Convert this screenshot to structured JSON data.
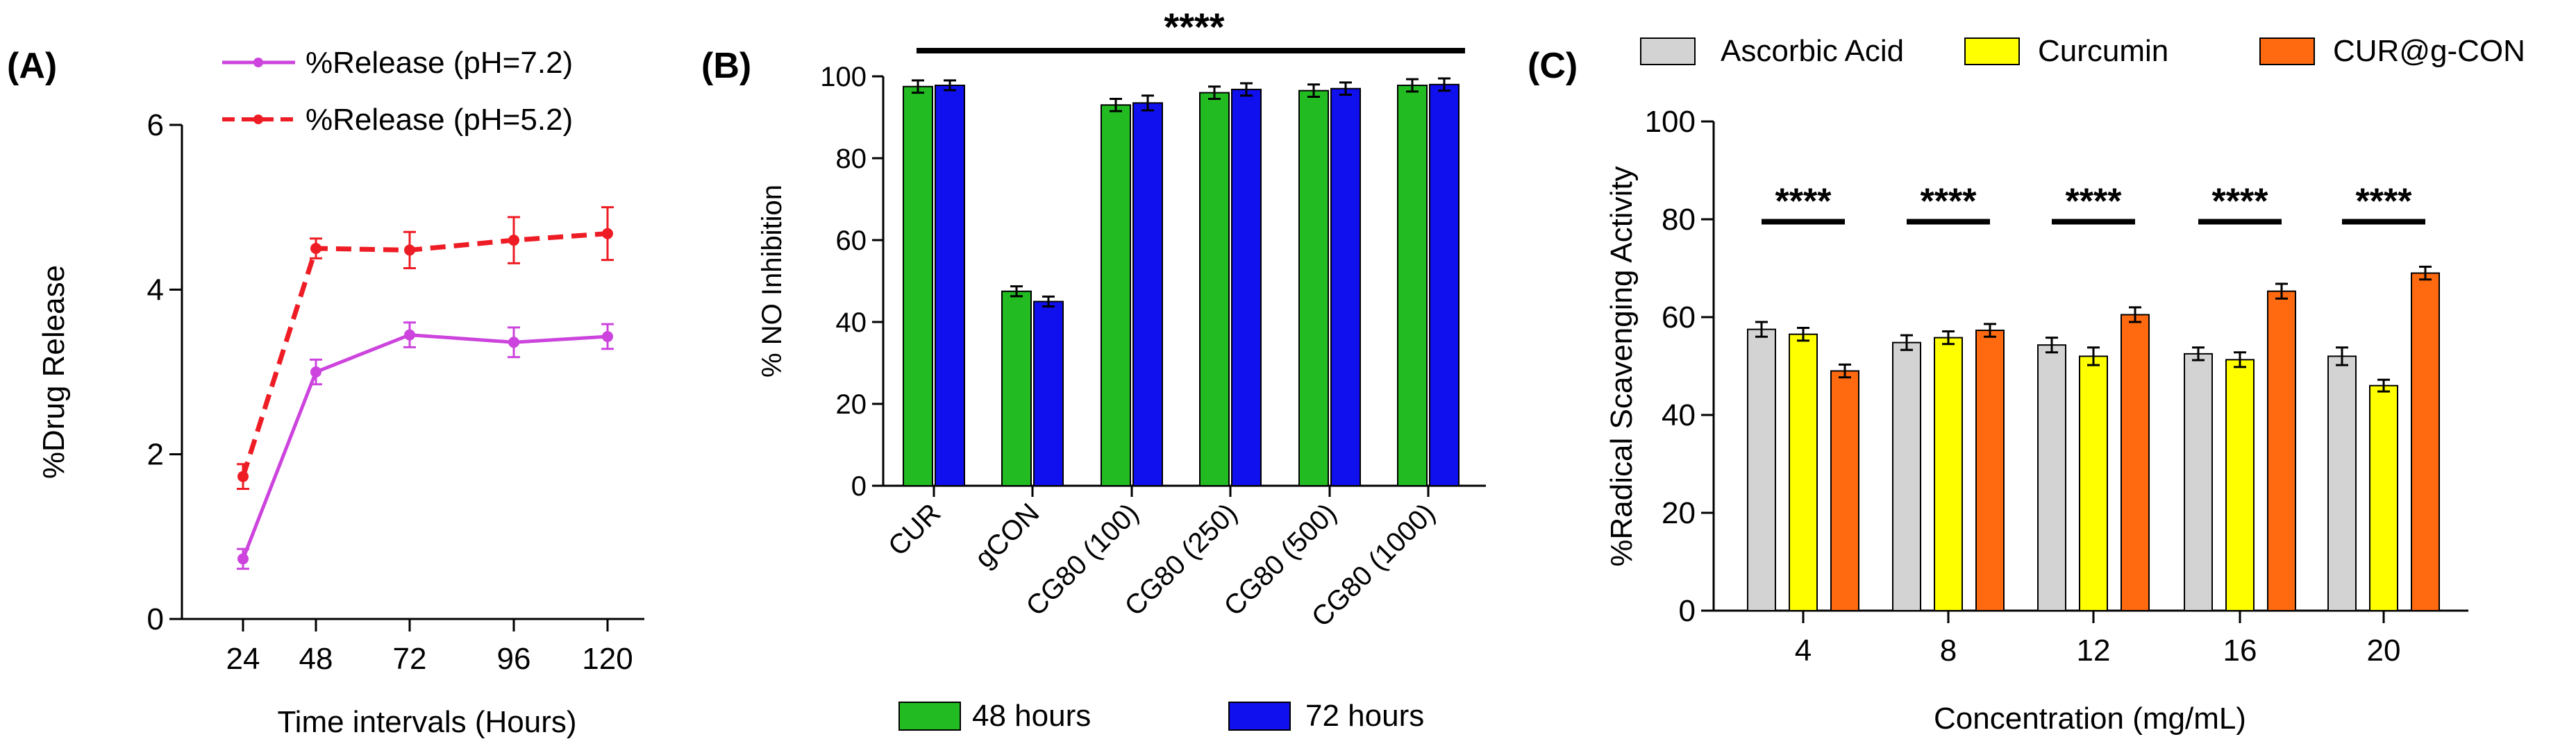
{
  "panels": {
    "a": {
      "label": "(A)"
    },
    "b": {
      "label": "(B)"
    },
    "c": {
      "label": "(C)"
    }
  },
  "colors": {
    "ph72": "#cc44dd",
    "ph52": "#ee1c24",
    "h48": "#22bb22",
    "h72": "#1010ee",
    "ascorbic": "#d3d3d3",
    "curcumin": "#ffff00",
    "curg": "#ff6a10"
  },
  "chart_data": [
    {
      "type": "line",
      "title": "",
      "xlabel": "Time intervals (Hours)",
      "ylabel": "%Drug Release",
      "x": [
        24,
        48,
        72,
        96,
        120
      ],
      "xticks": [
        "24",
        "48",
        "72",
        "96",
        "120"
      ],
      "ylim": [
        0,
        6
      ],
      "yticks": [
        "0",
        "2",
        "4",
        "6"
      ],
      "legend": "top-left",
      "series": [
        {
          "name": "%Release (pH=7.2)",
          "values": [
            0.73,
            3.0,
            3.45,
            3.36,
            3.43
          ],
          "errors": [
            0.12,
            0.15,
            0.15,
            0.18,
            0.15
          ]
        },
        {
          "name": "%Release (pH=5.2)",
          "values": [
            1.73,
            4.5,
            4.48,
            4.6,
            4.68
          ],
          "errors": [
            0.15,
            0.12,
            0.22,
            0.28,
            0.32
          ]
        }
      ]
    },
    {
      "type": "bar",
      "title": "",
      "xlabel": "",
      "ylabel": "% NO Inhibition",
      "categories": [
        "CUR",
        "gCON",
        "CG80 (100)",
        "CG80 (250)",
        "CG80 (500)",
        "CG80 (1000)"
      ],
      "ylim": [
        0,
        100
      ],
      "yticks": [
        "0",
        "20",
        "40",
        "60",
        "80",
        "100"
      ],
      "significance": "****",
      "legend": "bottom",
      "series": [
        {
          "name": "48 hours",
          "values": [
            97.5,
            47.5,
            93,
            96,
            96.5,
            97.8
          ],
          "errors": [
            1.5,
            1.2,
            1.5,
            1.5,
            1.5,
            1.5
          ]
        },
        {
          "name": "72 hours",
          "values": [
            97.8,
            45,
            93.5,
            96.8,
            97,
            98
          ],
          "errors": [
            1.2,
            1.2,
            1.8,
            1.5,
            1.5,
            1.5
          ]
        }
      ]
    },
    {
      "type": "bar",
      "title": "",
      "xlabel": "Concentration (mg/mL)",
      "ylabel": "%Radical Scavenging Activity",
      "categories": [
        "4",
        "8",
        "12",
        "16",
        "20"
      ],
      "ylim": [
        0,
        100
      ],
      "yticks": [
        "0",
        "20",
        "40",
        "60",
        "80",
        "100"
      ],
      "significance": [
        "****",
        "****",
        "****",
        "****",
        "****"
      ],
      "legend": "top",
      "series": [
        {
          "name": "Ascorbic Acid",
          "values": [
            57.5,
            54.8,
            54.3,
            52.5,
            52
          ],
          "errors": [
            1.5,
            1.5,
            1.5,
            1.3,
            1.8
          ]
        },
        {
          "name": "Curcumin",
          "values": [
            56.5,
            55.8,
            52,
            51.3,
            46
          ],
          "errors": [
            1.3,
            1.3,
            1.8,
            1.5,
            1.2
          ]
        },
        {
          "name": "CUR@g-CON",
          "values": [
            49,
            57.3,
            60.5,
            65.3,
            69
          ],
          "errors": [
            1.3,
            1.3,
            1.5,
            1.5,
            1.3
          ]
        }
      ]
    }
  ]
}
